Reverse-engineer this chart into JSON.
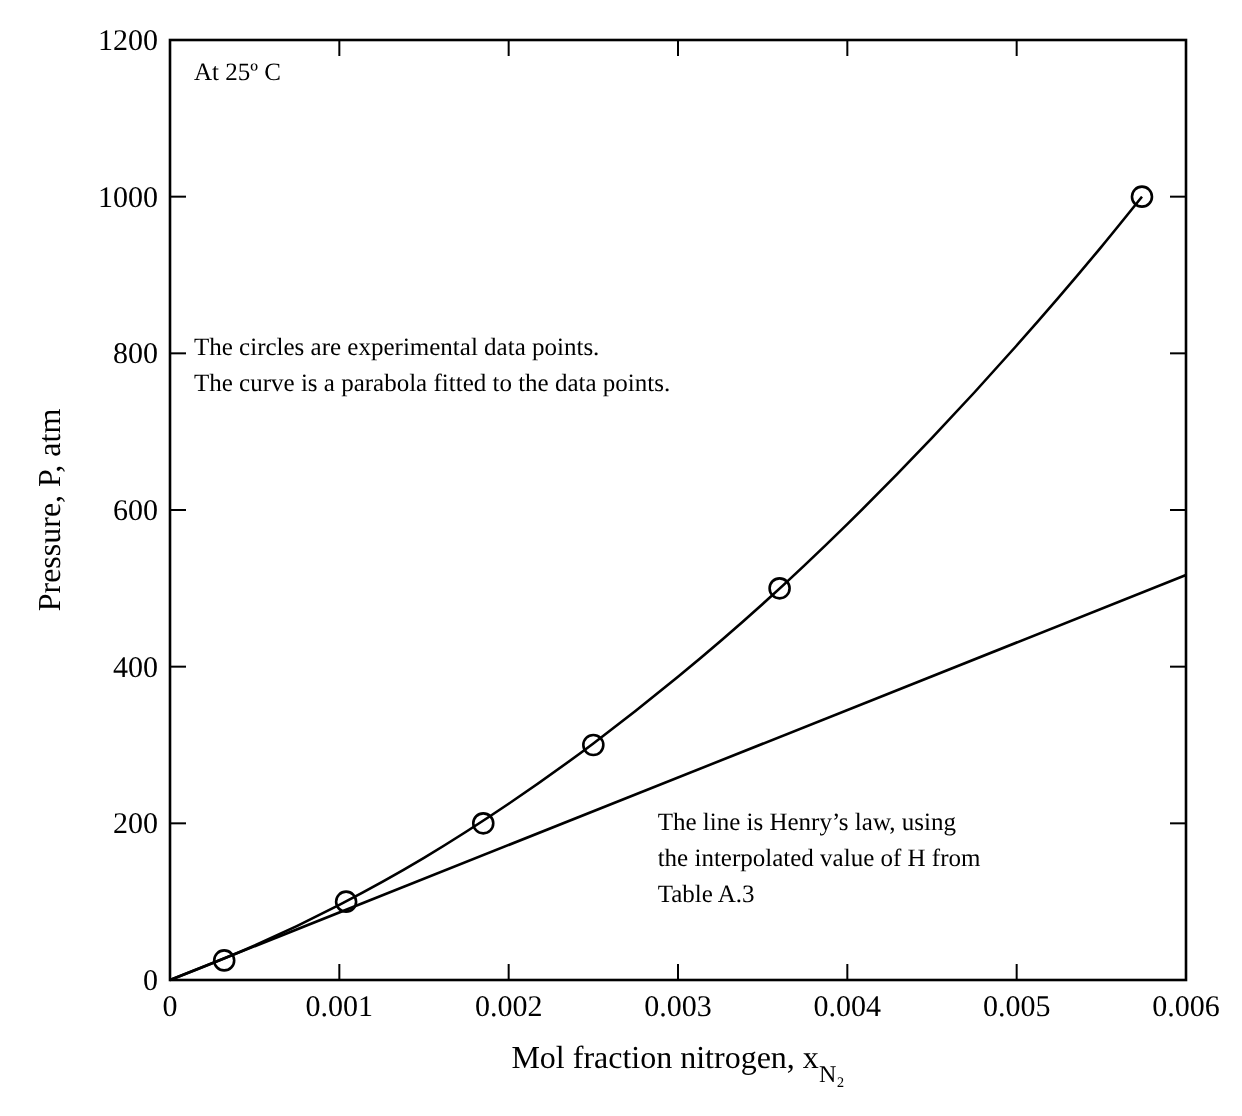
{
  "chart_data": {
    "type": "scatter",
    "xlabel": "Mol fraction nitrogen, x$_{N₂}$",
    "ylabel": "Pressure, P, atm",
    "xlim": [
      0,
      0.006
    ],
    "ylim": [
      0,
      1200
    ],
    "xticks": [
      0,
      0.001,
      0.002,
      0.003,
      0.004,
      0.005,
      0.006
    ],
    "yticks": [
      0,
      200,
      400,
      600,
      800,
      1000,
      1200
    ],
    "grid": false,
    "annotations": [
      "At 25º C",
      "The circles are experimental data points.\nThe curve is a parabola fitted to the data points.",
      "The line is Henry’s law, using\nthe interpolated value of H from\nTable A.3"
    ],
    "series": [
      {
        "marker": "circle",
        "color": "#000000",
        "x": [
          0.00032,
          0.00104,
          0.00185,
          0.0025,
          0.0036,
          0.00574
        ],
        "values": [
          25,
          100,
          200,
          300,
          500,
          1000
        ]
      },
      {
        "type": "line",
        "marker": "none",
        "line_style": "solid",
        "color": "#000000",
        "x": [
          0,
          0.0005,
          0.001,
          0.0015,
          0.002,
          0.0025,
          0.003,
          0.0035,
          0.004,
          0.0045,
          0.005,
          0.0055,
          0.00574
        ],
        "values": [
          0,
          44,
          96,
          156,
          225,
          302,
          387,
          480,
          582,
          692,
          810,
          936,
          1000
        ]
      },
      {
        "type": "line",
        "marker": "none",
        "line_style": "solid",
        "color": "#000000",
        "x": [
          0,
          0.006
        ],
        "values": [
          0,
          517
        ]
      }
    ]
  }
}
